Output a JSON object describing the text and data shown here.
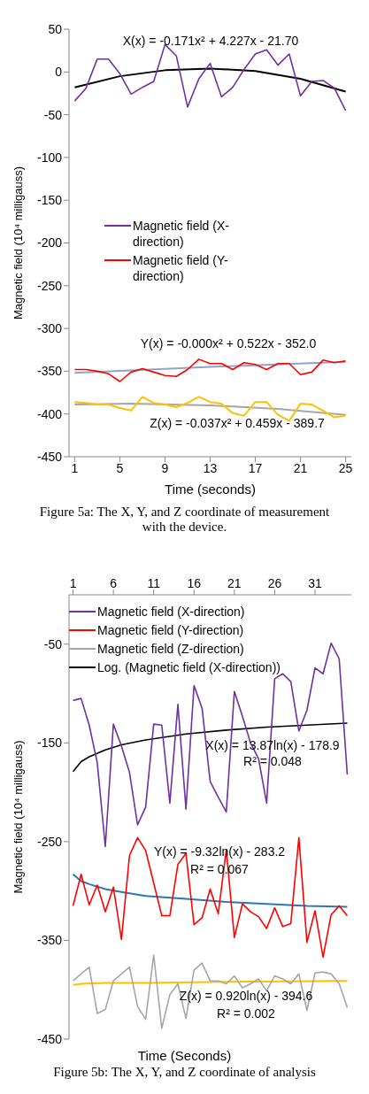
{
  "chart_data": [
    {
      "type": "line",
      "xlabel": "Time (seconds)",
      "ylabel": "Magnetic field (10⁴ milligauss)",
      "x": [
        1,
        2,
        3,
        4,
        5,
        6,
        7,
        8,
        9,
        10,
        11,
        12,
        13,
        14,
        15,
        16,
        17,
        18,
        19,
        20,
        21,
        22,
        23,
        24,
        25
      ],
      "xlim": [
        0.5,
        25.5
      ],
      "xticks": [
        1,
        5,
        9,
        13,
        17,
        21,
        25
      ],
      "ylim": [
        -450,
        50
      ],
      "yticks": [
        -450,
        -400,
        -350,
        -300,
        -250,
        -200,
        -150,
        -100,
        -50,
        0,
        50
      ],
      "grid": false,
      "legend": "left",
      "marker": "none",
      "line_style": "solid",
      "series": [
        {
          "name": "Magnetic field (X-direction)",
          "color": "#7030a0",
          "values": [
            -34,
            -19,
            15,
            15,
            -2,
            -26,
            -18,
            -11,
            32,
            19,
            -41,
            -8,
            10,
            -29,
            -18,
            3,
            21,
            26,
            8,
            21,
            -28,
            -11,
            -10,
            -19,
            -45
          ]
        },
        {
          "name": "Magnetic field (Y-direction)",
          "color": "#ff0000",
          "values": [
            -348,
            -348,
            -350,
            -353,
            -362,
            -351,
            -347,
            -351,
            -355,
            -356,
            -348,
            -336,
            -341,
            -341,
            -348,
            -340,
            -342,
            -348,
            -341,
            -341,
            -354,
            -351,
            -337,
            -340,
            -338
          ]
        },
        {
          "color": "#ffc000",
          "values": [
            -386,
            -387,
            -389,
            -389,
            -393,
            -396,
            -380,
            -387,
            -389,
            -392,
            -387,
            -380,
            -386,
            -388,
            -399,
            -402,
            -386,
            -386,
            -401,
            -408,
            -388,
            -389,
            -396,
            -404,
            -402
          ]
        },
        {
          "color": "#000000",
          "x": [
            1,
            5,
            9,
            13,
            17,
            21,
            25
          ],
          "values": [
            -18,
            -5,
            2,
            4,
            1,
            -8,
            -23
          ]
        },
        {
          "color": "#8ea4c8",
          "x": [
            1,
            13,
            25
          ],
          "values": [
            -352,
            -345,
            -339
          ]
        },
        {
          "color": "#a6a6a6",
          "x": [
            1,
            6,
            13,
            19,
            25
          ],
          "values": [
            -389,
            -388,
            -390,
            -394,
            -401
          ]
        }
      ],
      "annotations": [
        "X(x) = -0.171x² + 4.227x - 21.70",
        "Y(x) = -0.000x² + 0.522x - 352.0",
        "Z(x) = -0.037x² + 0.459x - 389.7",
        "Figure 5a: The X, Y, and Z coordinate of measurement with the device."
      ]
    },
    {
      "type": "line",
      "xlabel": "Time (Seconds)",
      "ylabel": "Magnetic field (10⁴ milligauss)",
      "x": [
        1,
        2,
        3,
        4,
        5,
        6,
        7,
        8,
        9,
        10,
        11,
        12,
        13,
        14,
        15,
        16,
        17,
        18,
        19,
        20,
        21,
        22,
        23,
        24,
        25,
        26,
        27,
        28,
        29,
        30,
        31,
        32,
        33,
        34,
        35
      ],
      "xlim": [
        0.5,
        35.5
      ],
      "xticks": [
        1,
        6,
        11,
        16,
        21,
        26,
        31
      ],
      "ylim": [
        -450,
        0
      ],
      "yticks": [
        -450,
        -350,
        -250,
        -150,
        -50
      ],
      "grid": false,
      "legend": "top",
      "marker": "none",
      "line_style": "solid",
      "series": [
        {
          "name": "Magnetic field (X-direction)",
          "color": "#7030a0",
          "values": [
            -107,
            -105,
            -132,
            -170,
            -255,
            -131,
            -153,
            -180,
            -233,
            -215,
            -131,
            -132,
            -211,
            -111,
            -217,
            -92,
            -115,
            -189,
            -205,
            -220,
            -98,
            -123,
            -150,
            -166,
            -211,
            -85,
            -80,
            -88,
            -138,
            -117,
            -74,
            -80,
            -49,
            -65,
            -182
          ]
        },
        {
          "name": "Magnetic field (Y-direction)",
          "color": "#ff0000",
          "values": [
            -315,
            -283,
            -314,
            -294,
            -321,
            -296,
            -349,
            -264,
            -246,
            -259,
            -292,
            -325,
            -325,
            -273,
            -262,
            -334,
            -327,
            -298,
            -323,
            -258,
            -347,
            -313,
            -321,
            -326,
            -338,
            -317,
            -336,
            -333,
            -246,
            -352,
            -320,
            -367,
            -324,
            -315,
            -325
          ]
        },
        {
          "name": "Magnetic field (Z-direction)",
          "color": "#a6a6a6",
          "values": [
            -391,
            -384,
            -377,
            -424,
            -420,
            -391,
            -384,
            -377,
            -417,
            -430,
            -365,
            -439,
            -405,
            -394,
            -429,
            -380,
            -373,
            -391,
            -391,
            -394,
            -386,
            -398,
            -394,
            -389,
            -401,
            -386,
            -389,
            -394,
            -384,
            -421,
            -383,
            -382,
            -384,
            -394,
            -418
          ]
        },
        {
          "name": "Log. (Magnetic field (X-direction))",
          "color": "#000000",
          "x": [
            1,
            2,
            3,
            5,
            7,
            10,
            15,
            20,
            25,
            30,
            35
          ],
          "values": [
            -179,
            -169,
            -164,
            -157,
            -152,
            -147,
            -141,
            -137,
            -134,
            -132,
            -130
          ]
        },
        {
          "color": "#2e75b6",
          "x": [
            1,
            2,
            3,
            5,
            7,
            10,
            15,
            20,
            25,
            30,
            35
          ],
          "values": [
            -283,
            -290,
            -293,
            -298,
            -301,
            -305,
            -308,
            -311,
            -313,
            -315,
            -316
          ]
        },
        {
          "color": "#ffc000",
          "x": [
            1,
            2,
            5,
            10,
            20,
            35
          ],
          "values": [
            -395,
            -394,
            -393,
            -393,
            -392,
            -391
          ]
        }
      ],
      "annotations": [
        "X(x) = 13.87ln(x) - 178.9",
        "R² = 0.048",
        "Y(x) = -9.32ln(x) - 283.2",
        "R² = 0.067",
        "Z(x) = 0.920ln(x) - 394.6",
        "R² = 0.002",
        "Figure 5b: The X, Y, and Z coordinate of analysis"
      ]
    }
  ]
}
